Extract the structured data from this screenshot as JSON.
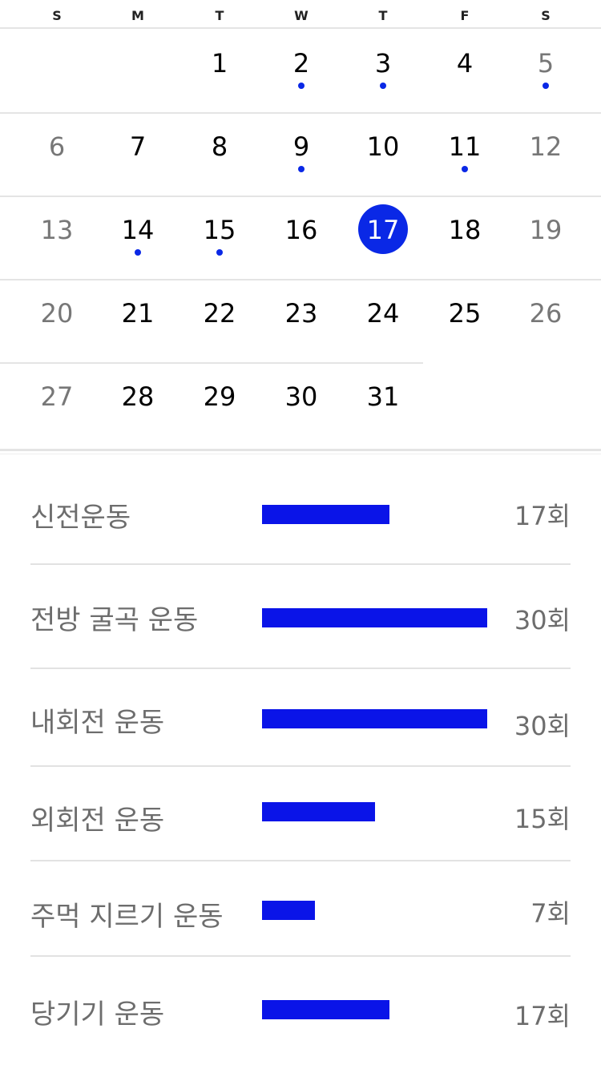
{
  "calendar": {
    "weekdays": [
      "S",
      "M",
      "T",
      "W",
      "T",
      "F",
      "S"
    ],
    "weeks": [
      [
        {
          "d": ""
        },
        {
          "d": ""
        },
        {
          "d": "1"
        },
        {
          "d": "2",
          "dot": true
        },
        {
          "d": "3",
          "dot": true
        },
        {
          "d": "4"
        },
        {
          "d": "5",
          "dot": true
        }
      ],
      [
        {
          "d": "6"
        },
        {
          "d": "7"
        },
        {
          "d": "8"
        },
        {
          "d": "9",
          "dot": true
        },
        {
          "d": "10"
        },
        {
          "d": "11",
          "dot": true
        },
        {
          "d": "12"
        }
      ],
      [
        {
          "d": "13"
        },
        {
          "d": "14",
          "dot": true
        },
        {
          "d": "15",
          "dot": true
        },
        {
          "d": "16"
        },
        {
          "d": "17",
          "selected": true
        },
        {
          "d": "18"
        },
        {
          "d": "19"
        }
      ],
      [
        {
          "d": "20"
        },
        {
          "d": "21"
        },
        {
          "d": "22"
        },
        {
          "d": "23"
        },
        {
          "d": "24"
        },
        {
          "d": "25"
        },
        {
          "d": "26"
        }
      ],
      [
        {
          "d": "27"
        },
        {
          "d": "28"
        },
        {
          "d": "29"
        },
        {
          "d": "30"
        },
        {
          "d": "31"
        },
        {
          "d": ""
        },
        {
          "d": ""
        }
      ]
    ],
    "accent_color": "#0a28e6"
  },
  "stats": [
    {
      "label": "신전운동",
      "value": "17회",
      "count": 17
    },
    {
      "label": "전방 굴곡 운동",
      "value": "30회",
      "count": 30
    },
    {
      "label": "내회전 운동",
      "value": "30회",
      "count": 30
    },
    {
      "label": "외회전 운동",
      "value": "15회",
      "count": 15
    },
    {
      "label": "주먹 지르기 운동",
      "value": "7회",
      "count": 7
    },
    {
      "label": "당기기 운동",
      "value": "17회",
      "count": 17
    }
  ],
  "stats_max": 30,
  "bar_color": "#0a14e8"
}
